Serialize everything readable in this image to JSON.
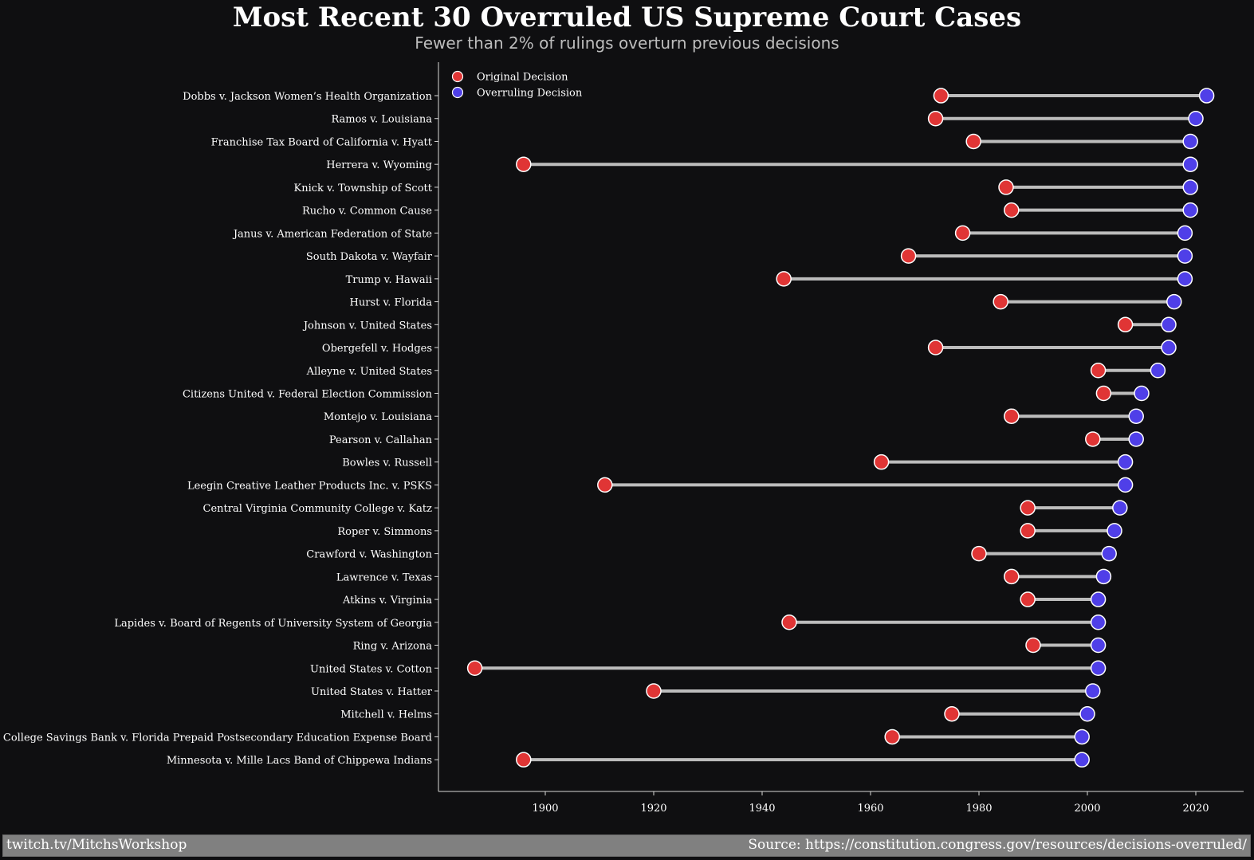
{
  "chart_data": {
    "type": "dumbbell",
    "title": "Most Recent 30 Overruled US Supreme Court Cases",
    "subtitle": "Fewer than 2% of rulings overturn previous decisions",
    "xlabel": "",
    "ylabel": "",
    "xlim": [
      1880,
      2029
    ],
    "xticks": [
      1900,
      1920,
      1940,
      1960,
      1980,
      2000,
      2020
    ],
    "grid": false,
    "legend_position": "top-left",
    "colors": {
      "original": "#e03535",
      "overruling": "#4f3fe8",
      "connector": "#bcbcbc",
      "background": "#0f0f11"
    },
    "series": [
      {
        "name": "Original Decision",
        "key": "original"
      },
      {
        "name": "Overruling Decision",
        "key": "overruling"
      }
    ],
    "cases": [
      {
        "name": "Dobbs v. Jackson Women’s Health Organization",
        "original": 1973,
        "overruling": 2022
      },
      {
        "name": "Ramos v. Louisiana",
        "original": 1972,
        "overruling": 2020
      },
      {
        "name": "Franchise Tax Board of California v. Hyatt",
        "original": 1979,
        "overruling": 2019
      },
      {
        "name": "Herrera v. Wyoming",
        "original": 1896,
        "overruling": 2019
      },
      {
        "name": "Knick v. Township of Scott",
        "original": 1985,
        "overruling": 2019
      },
      {
        "name": "Rucho v. Common Cause",
        "original": 1986,
        "overruling": 2019
      },
      {
        "name": "Janus v. American Federation of State",
        "original": 1977,
        "overruling": 2018
      },
      {
        "name": "South Dakota v. Wayfair",
        "original": 1967,
        "overruling": 2018
      },
      {
        "name": "Trump v. Hawaii",
        "original": 1944,
        "overruling": 2018
      },
      {
        "name": "Hurst v. Florida",
        "original": 1984,
        "overruling": 2016
      },
      {
        "name": "Johnson v. United States",
        "original": 2007,
        "overruling": 2015
      },
      {
        "name": "Obergefell v. Hodges",
        "original": 1972,
        "overruling": 2015
      },
      {
        "name": "Alleyne v. United States",
        "original": 2002,
        "overruling": 2013
      },
      {
        "name": "Citizens United v. Federal Election Commission",
        "original": 2003,
        "overruling": 2010
      },
      {
        "name": "Montejo v. Louisiana",
        "original": 1986,
        "overruling": 2009
      },
      {
        "name": "Pearson v. Callahan",
        "original": 2001,
        "overruling": 2009
      },
      {
        "name": "Bowles v. Russell",
        "original": 1962,
        "overruling": 2007
      },
      {
        "name": "Leegin Creative Leather Products Inc. v. PSKS",
        "original": 1911,
        "overruling": 2007
      },
      {
        "name": "Central Virginia Community College v. Katz",
        "original": 1989,
        "overruling": 2006
      },
      {
        "name": "Roper v. Simmons",
        "original": 1989,
        "overruling": 2005
      },
      {
        "name": "Crawford v. Washington",
        "original": 1980,
        "overruling": 2004
      },
      {
        "name": "Lawrence v. Texas",
        "original": 1986,
        "overruling": 2003
      },
      {
        "name": "Atkins v. Virginia",
        "original": 1989,
        "overruling": 2002
      },
      {
        "name": "Lapides v. Board of Regents of University System of Georgia",
        "original": 1945,
        "overruling": 2002
      },
      {
        "name": "Ring v. Arizona",
        "original": 1990,
        "overruling": 2002
      },
      {
        "name": "United States v. Cotton",
        "original": 1887,
        "overruling": 2002
      },
      {
        "name": "United States v. Hatter",
        "original": 1920,
        "overruling": 2001
      },
      {
        "name": "Mitchell v. Helms",
        "original": 1975,
        "overruling": 2000
      },
      {
        "name": "College Savings Bank v. Florida Prepaid Postsecondary Education Expense Board",
        "original": 1964,
        "overruling": 1999
      },
      {
        "name": "Minnesota v. Mille Lacs Band of Chippewa Indians",
        "original": 1896,
        "overruling": 1999
      }
    ]
  },
  "footer": {
    "left": "twitch.tv/MitchsWorkshop",
    "right": "Source: https://constitution.congress.gov/resources/decisions-overruled/"
  }
}
